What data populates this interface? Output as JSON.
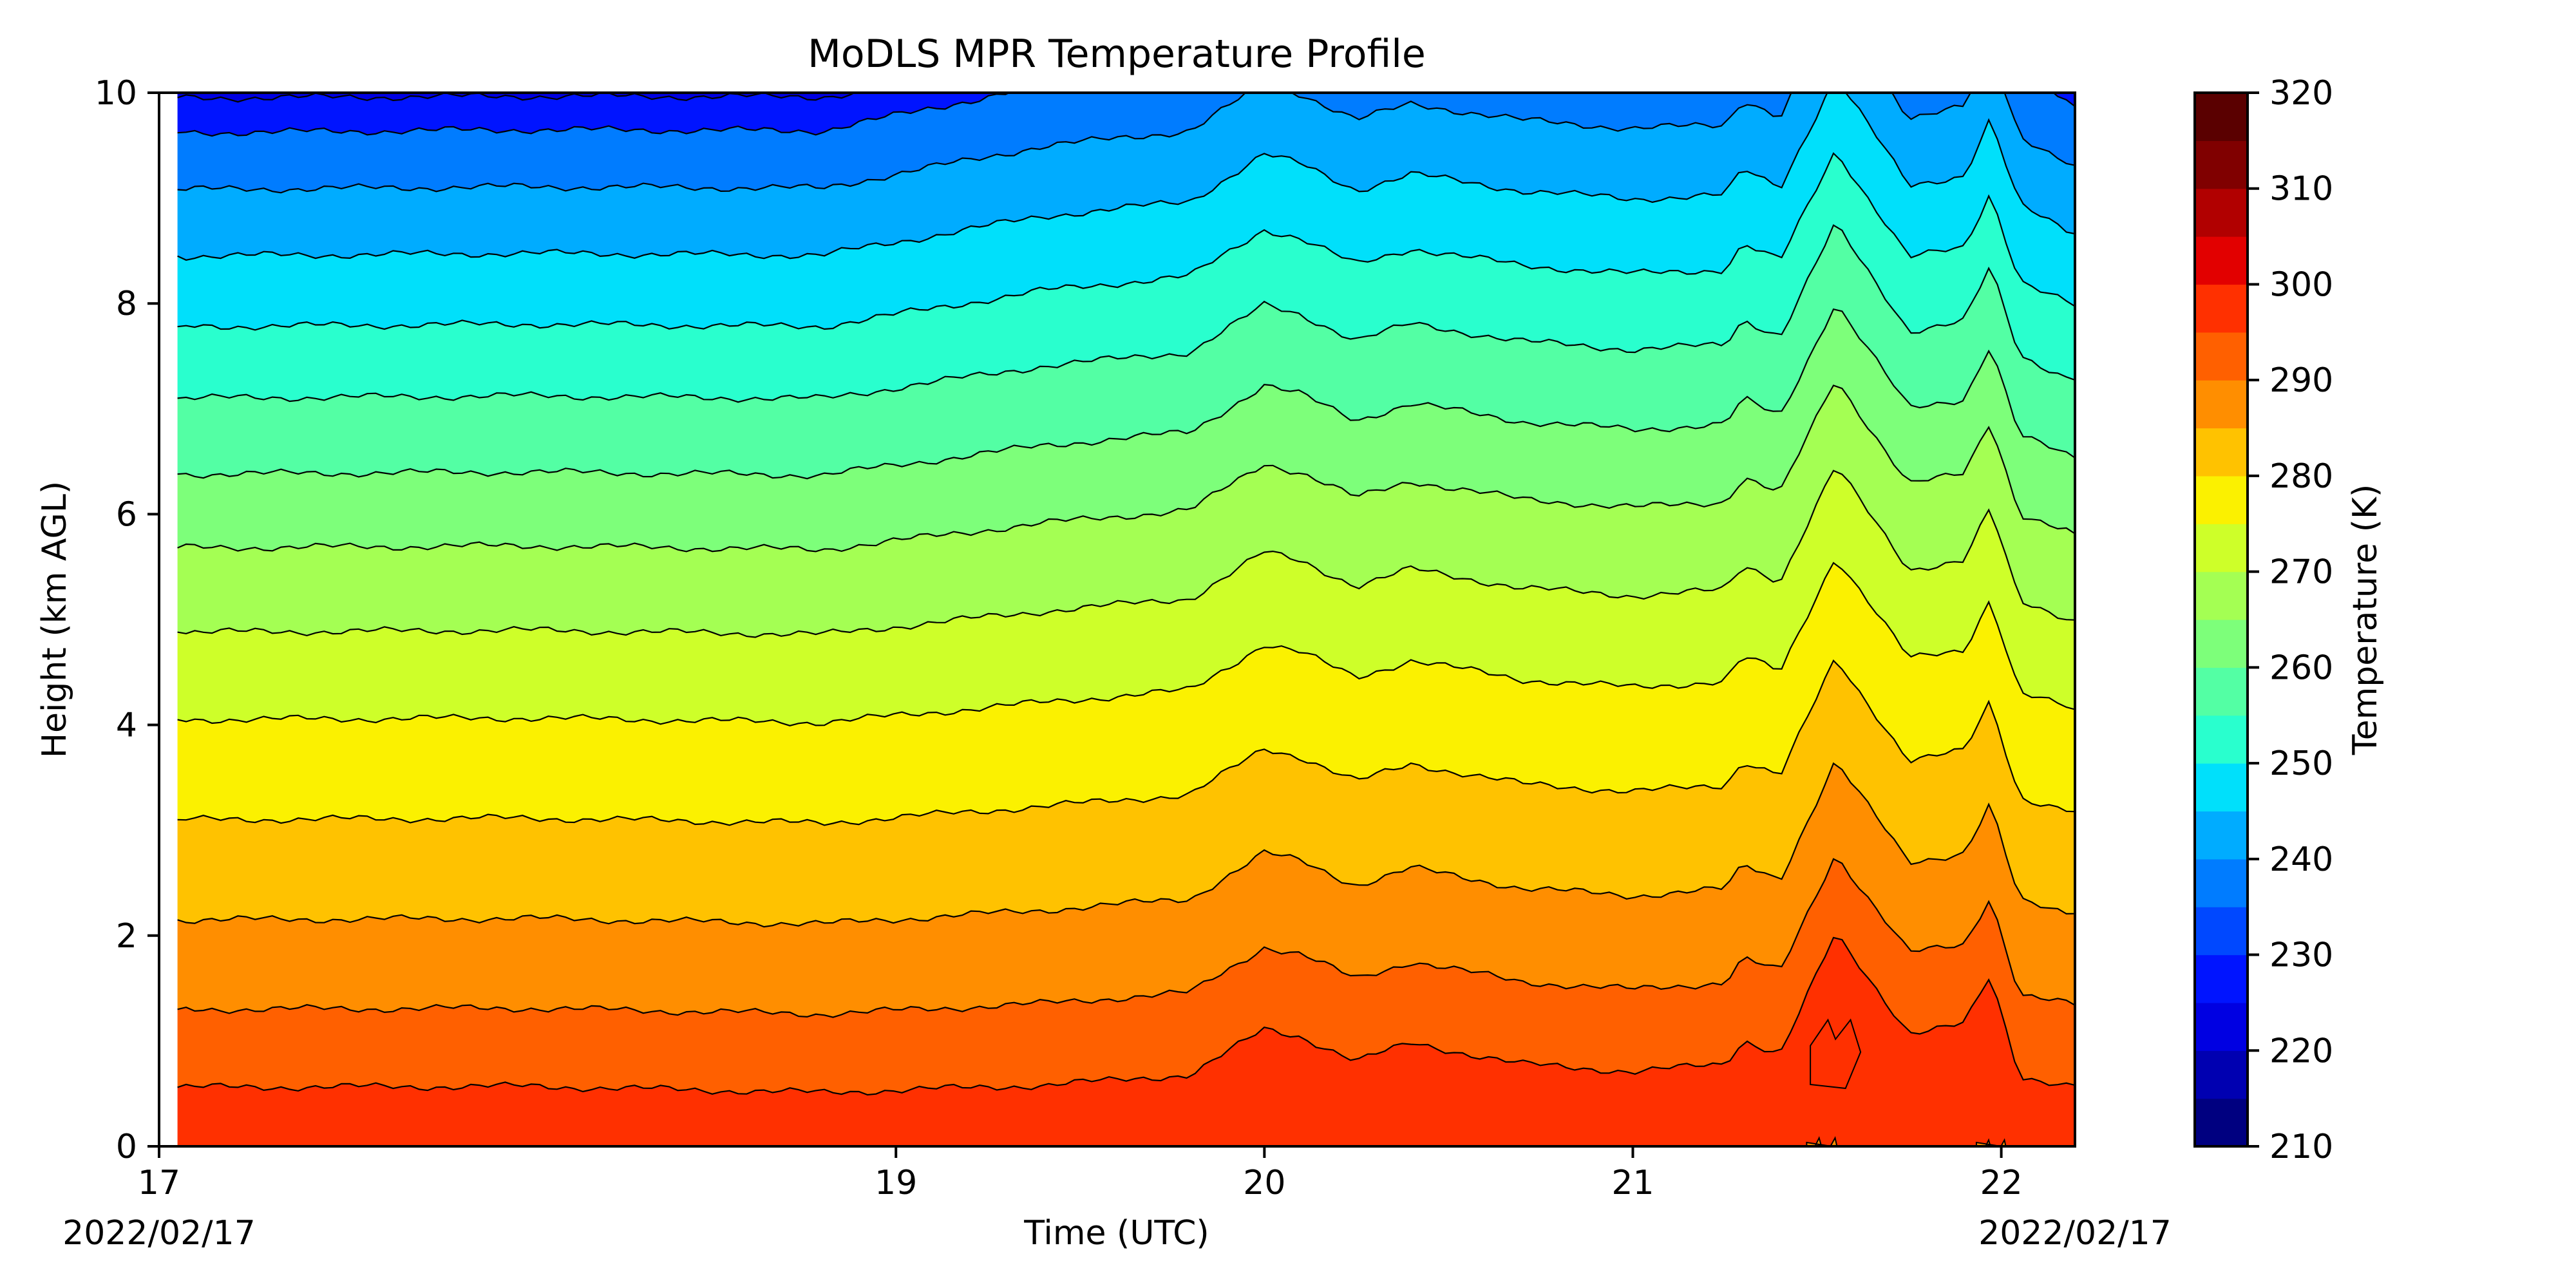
{
  "chart_data": {
    "type": "heatmap",
    "style": "filled-contour",
    "title": "MoDLS MPR Temperature Profile",
    "xlabel": "Time (UTC)",
    "ylabel": "Height (km AGL)",
    "x_ticks": [
      "17",
      "19",
      "20",
      "21",
      "22"
    ],
    "x_tick_hours": [
      17,
      19,
      20,
      21,
      22
    ],
    "x_corner_labels": {
      "left": "2022/02/17",
      "right": "2022/02/17"
    },
    "xlim_hours": [
      17,
      22.2
    ],
    "data_start_hour": 17.05,
    "y_ticks": [
      "0",
      "2",
      "4",
      "6",
      "8",
      "10"
    ],
    "ylim": [
      0,
      10
    ],
    "colorbar": {
      "label": "Temperature (K)",
      "ticks": [
        "210",
        "220",
        "230",
        "240",
        "250",
        "260",
        "270",
        "280",
        "290",
        "300",
        "310",
        "320"
      ],
      "range": [
        210,
        320
      ],
      "level_step": 5,
      "colors": [
        "#000080",
        "#0000b1",
        "#0000e2",
        "#0014ff",
        "#0048ff",
        "#007cff",
        "#00acff",
        "#00e0fb",
        "#29ffce",
        "#53ffa4",
        "#7dff7a",
        "#a4ff53",
        "#ceff29",
        "#fbf100",
        "#ffc200",
        "#ff8e00",
        "#ff6000",
        "#ff3000",
        "#e20000",
        "#b10000",
        "#800000",
        "#5a0000"
      ]
    },
    "isotherms_km_at_start": [
      {
        "temp_k": 290,
        "km": 0.56
      },
      {
        "temp_k": 285,
        "km": 1.3
      },
      {
        "temp_k": 280,
        "km": 2.15
      },
      {
        "temp_k": 275,
        "km": 3.1
      },
      {
        "temp_k": 270,
        "km": 4.05
      },
      {
        "temp_k": 265,
        "km": 4.88
      },
      {
        "temp_k": 260,
        "km": 5.68
      },
      {
        "temp_k": 255,
        "km": 6.38
      },
      {
        "temp_k": 250,
        "km": 7.1
      },
      {
        "temp_k": 245,
        "km": 7.78
      },
      {
        "temp_k": 240,
        "km": 8.45
      },
      {
        "temp_k": 235,
        "km": 9.08
      },
      {
        "temp_k": 230,
        "km": 9.62
      }
    ],
    "isotherm_rise_km": {
      "hours": [
        17.05,
        18.0,
        18.8,
        19.4,
        19.8,
        20.0,
        20.1,
        20.25,
        20.4,
        20.7,
        21.0,
        21.25,
        21.3,
        21.4,
        21.55,
        21.75,
        21.9,
        21.97,
        22.05,
        22.2
      ],
      "low": [
        0,
        0.01,
        -0.05,
        0.02,
        0.12,
        0.55,
        0.48,
        0.25,
        0.42,
        0.22,
        0.15,
        0.22,
        0.45,
        0.32,
        1.45,
        0.52,
        0.6,
        1.05,
        0.1,
        0.02
      ],
      "high": [
        0,
        0.03,
        0.02,
        0.45,
        0.6,
        1.05,
        0.95,
        0.7,
        0.85,
        0.7,
        0.62,
        0.65,
        0.9,
        0.72,
        1.75,
        0.7,
        0.8,
        1.35,
        0.55,
        0.25
      ]
    },
    "warm_pockets": [
      {
        "temp_k": 295,
        "hour": 21.55,
        "km_bottom": 0.55,
        "km_top": 1.2
      },
      {
        "temp_k": 285,
        "hour": 21.52,
        "km_bottom": 0.0,
        "km_top": 0.08
      },
      {
        "temp_k": 285,
        "hour": 21.98,
        "km_bottom": 0.0,
        "km_top": 0.06
      }
    ]
  }
}
